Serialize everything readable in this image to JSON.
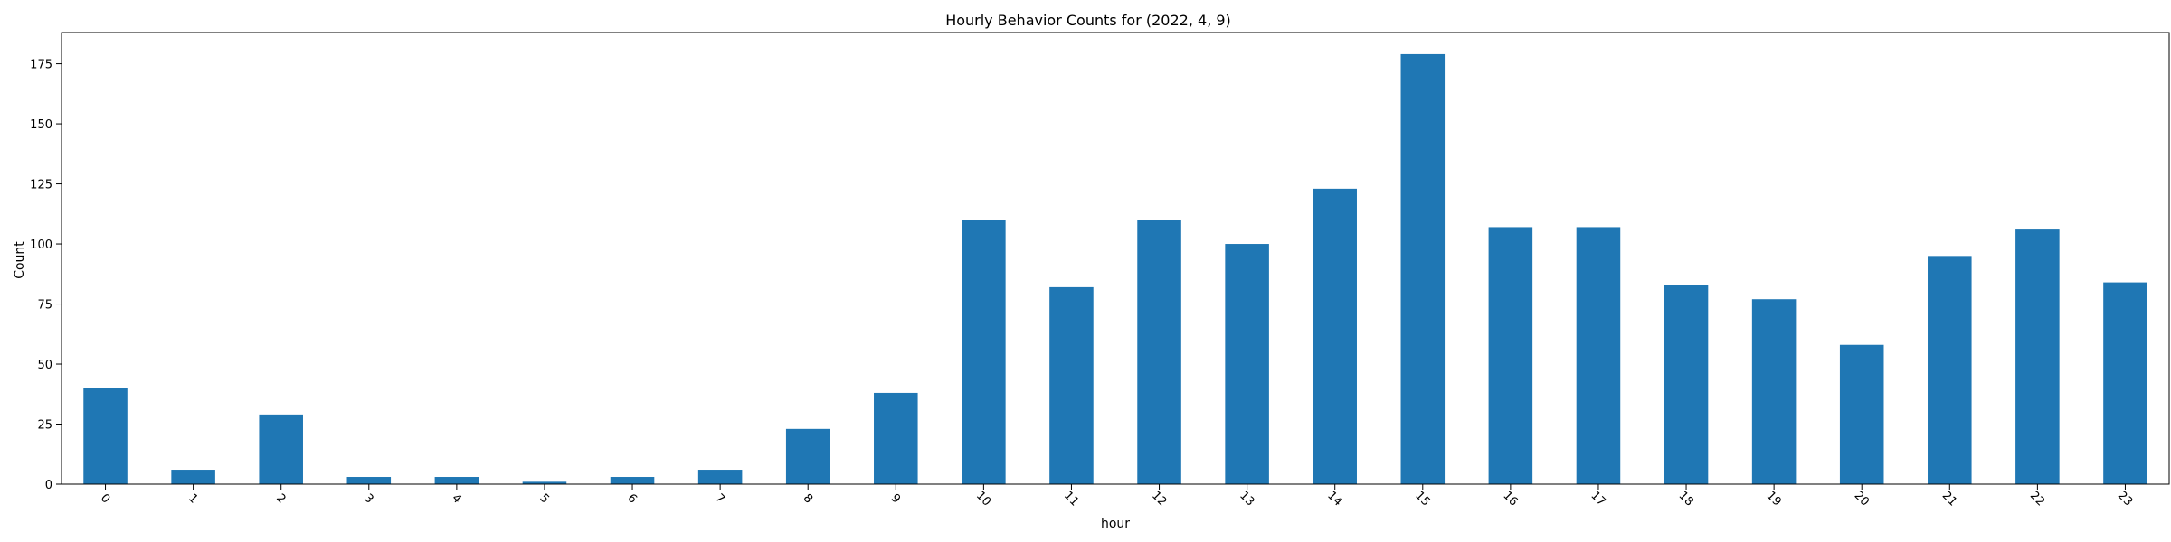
{
  "chart_data": {
    "type": "bar",
    "title": "Hourly Behavior Counts for (2022, 4, 9)",
    "xlabel": "hour",
    "ylabel": "Count",
    "categories": [
      "0",
      "1",
      "2",
      "3",
      "4",
      "5",
      "6",
      "7",
      "8",
      "9",
      "10",
      "11",
      "12",
      "13",
      "14",
      "15",
      "16",
      "17",
      "18",
      "19",
      "20",
      "21",
      "22",
      "23"
    ],
    "values": [
      40,
      6,
      29,
      3,
      3,
      1,
      3,
      6,
      23,
      38,
      110,
      82,
      110,
      100,
      123,
      179,
      107,
      107,
      83,
      77,
      58,
      95,
      106,
      84
    ],
    "ylim": [
      0,
      188
    ],
    "yticks": [
      0,
      25,
      50,
      75,
      100,
      125,
      150,
      175
    ],
    "x_tick_rotation": 45,
    "grid": false,
    "legend": "none",
    "bar_color": "#1f77b4"
  }
}
